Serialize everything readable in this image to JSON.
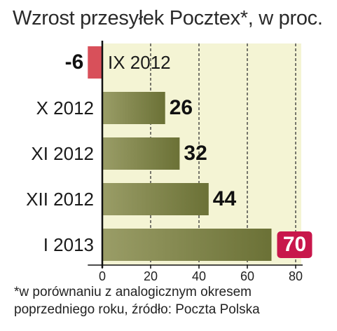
{
  "chart_data": {
    "type": "bar",
    "orientation": "horizontal",
    "title": "Wzrost przesyłek Pocztex*, w proc.",
    "categories": [
      "IX 2012",
      "X 2012",
      "XI 2012",
      "XII 2012",
      "I 2013"
    ],
    "values": [
      -6,
      26,
      32,
      44,
      70
    ],
    "value_labels": [
      "-6",
      "26",
      "32",
      "44",
      "70"
    ],
    "x_ticks": [
      "0",
      "20",
      "40",
      "60",
      "80"
    ],
    "xlim": [
      -6,
      80
    ],
    "grid": true,
    "colors": {
      "positive": "#6b7136",
      "negative": "#d8505a",
      "highlight_label_bg": "#c8174b",
      "plot_bg": "#f4f4d4"
    }
  },
  "footnote": {
    "line1": "*w porównaniu z analogicznym okresem",
    "line2": "poprzedniego roku, źródło: Poczta Polska"
  }
}
